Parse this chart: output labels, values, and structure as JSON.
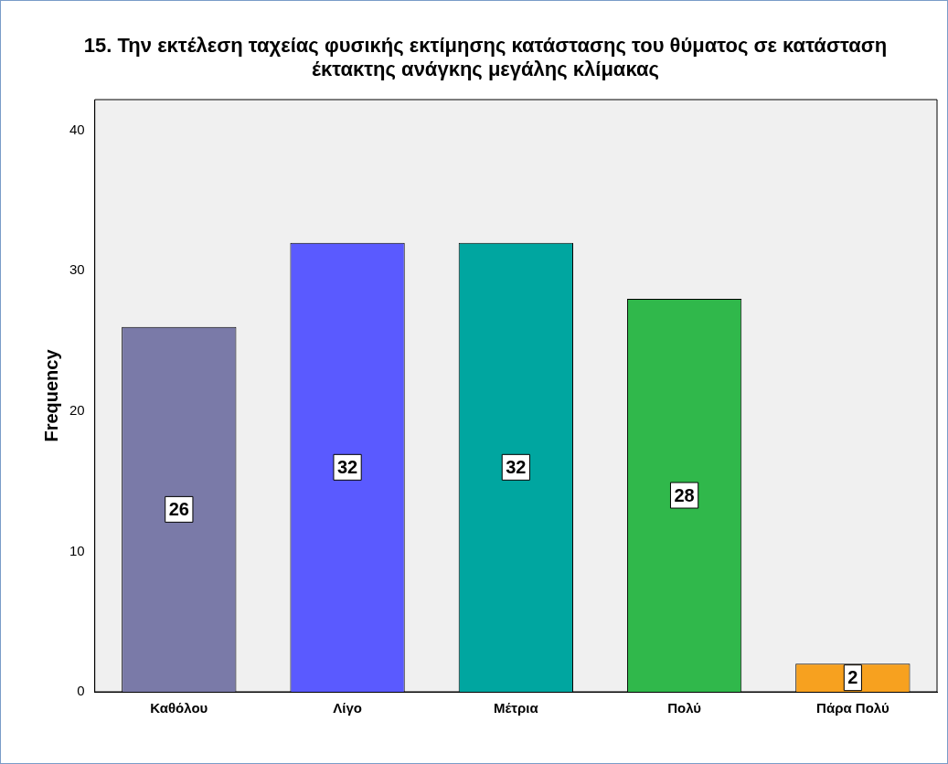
{
  "chart_data": {
    "type": "bar",
    "title": "15. Την εκτέλεση ταχείας φυσικής εκτίμησης κατάστασης του θύματος σε κατάσταση έκτακτης ανάγκης μεγάλης κλίμακας",
    "ylabel": "Frequency",
    "categories": [
      "Καθόλου",
      "Λίγο",
      "Μέτρια",
      "Πολύ",
      "Πάρα Πολύ"
    ],
    "values": [
      26,
      32,
      32,
      28,
      2
    ],
    "colors": [
      "#7a7aa8",
      "#5a5aff",
      "#00a6a0",
      "#30b84b",
      "#f7a11f"
    ],
    "ylim": [
      0,
      42.2
    ],
    "yticks": [
      0,
      10,
      20,
      30,
      40
    ],
    "grid": false,
    "legend": false,
    "data_labels": true
  }
}
